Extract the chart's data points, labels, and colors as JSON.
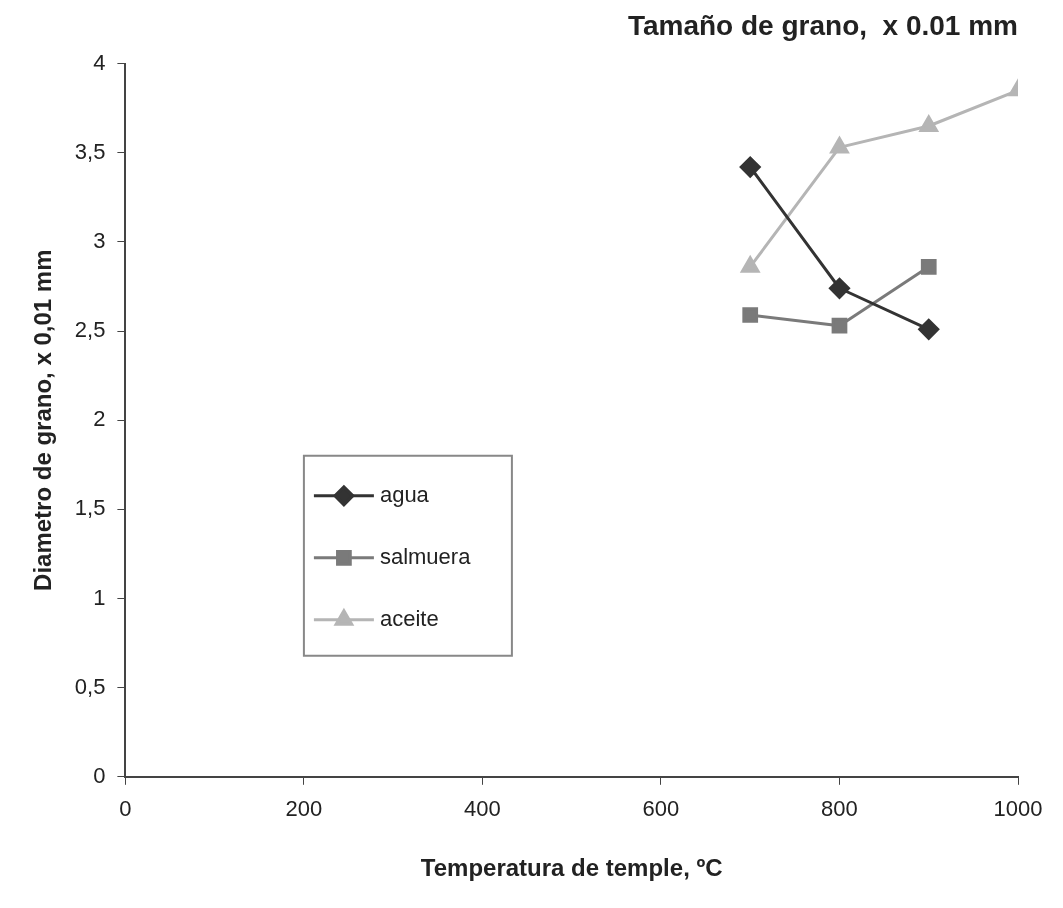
{
  "chart_data": {
    "type": "line",
    "title": "Tamaño de grano,  x 0.01 mm",
    "xlabel": "Temperatura de temple, ºC",
    "ylabel": "Diametro de grano, x 0,01 mm",
    "series": [
      {
        "name": "agua",
        "color": "#333333",
        "marker": "diamond",
        "x": [
          700,
          800,
          900
        ],
        "values": [
          3.42,
          2.74,
          2.51
        ]
      },
      {
        "name": "salmuera",
        "color": "#7a7a7a",
        "marker": "square",
        "x": [
          700,
          800,
          900
        ],
        "values": [
          2.59,
          2.53,
          2.86
        ]
      },
      {
        "name": "aceite",
        "color": "#b5b5b5",
        "marker": "triangle",
        "x": [
          700,
          800,
          900,
          1000
        ],
        "values": [
          2.86,
          3.53,
          3.65,
          3.85
        ]
      }
    ],
    "xlim": [
      0,
      1000
    ],
    "xticks": [
      0,
      200,
      400,
      600,
      800,
      1000
    ],
    "ylim": [
      0,
      4
    ],
    "yticks": [
      0,
      {
        "value": 0.5,
        "label": "0,5"
      },
      1,
      {
        "value": 1.5,
        "label": "1,5"
      },
      2,
      {
        "value": 2.5,
        "label": "2,5"
      },
      3,
      {
        "value": 3.5,
        "label": "3,5"
      },
      4
    ],
    "grid": false,
    "legend": "left"
  }
}
